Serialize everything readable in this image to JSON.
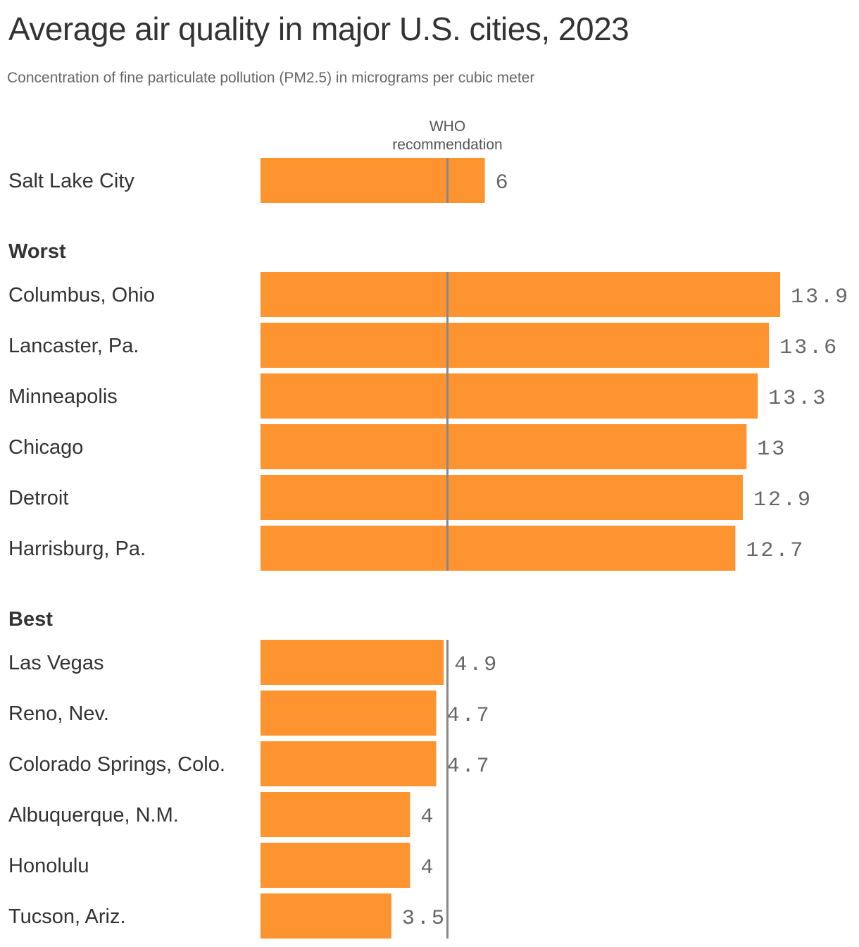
{
  "header": {
    "title": "Average air quality in major U.S. cities, 2023",
    "subtitle": "Concentration of fine particulate pollution (PM2.5) in micrograms per cubic meter"
  },
  "colors": {
    "bar": "#fe9430",
    "reference_line": "#888888",
    "text": "#333333",
    "value_text": "#666666"
  },
  "chart_data": {
    "type": "bar",
    "orientation": "horizontal",
    "title": "Average air quality in major U.S. cities, 2023",
    "subtitle": "Concentration of fine particulate pollution (PM2.5) in micrograms per cubic meter",
    "xlim": [
      0,
      14
    ],
    "grid": false,
    "reference_line": {
      "value": 5,
      "label_lines": [
        "WHO",
        "recommendation"
      ]
    },
    "groups": [
      {
        "name": "",
        "categories": [
          "Salt Lake City"
        ],
        "values": [
          6
        ]
      },
      {
        "name": "Worst",
        "categories": [
          "Columbus, Ohio",
          "Lancaster, Pa.",
          "Minneapolis",
          "Chicago",
          "Detroit",
          "Harrisburg, Pa."
        ],
        "values": [
          13.9,
          13.6,
          13.3,
          13,
          12.9,
          12.7
        ]
      },
      {
        "name": "Best",
        "categories": [
          "Las Vegas",
          "Reno, Nev.",
          "Colorado Springs, Colo.",
          "Albuquerque, N.M.",
          "Honolulu",
          "Tucson, Ariz."
        ],
        "values": [
          4.9,
          4.7,
          4.7,
          4,
          4,
          3.5
        ]
      }
    ]
  }
}
